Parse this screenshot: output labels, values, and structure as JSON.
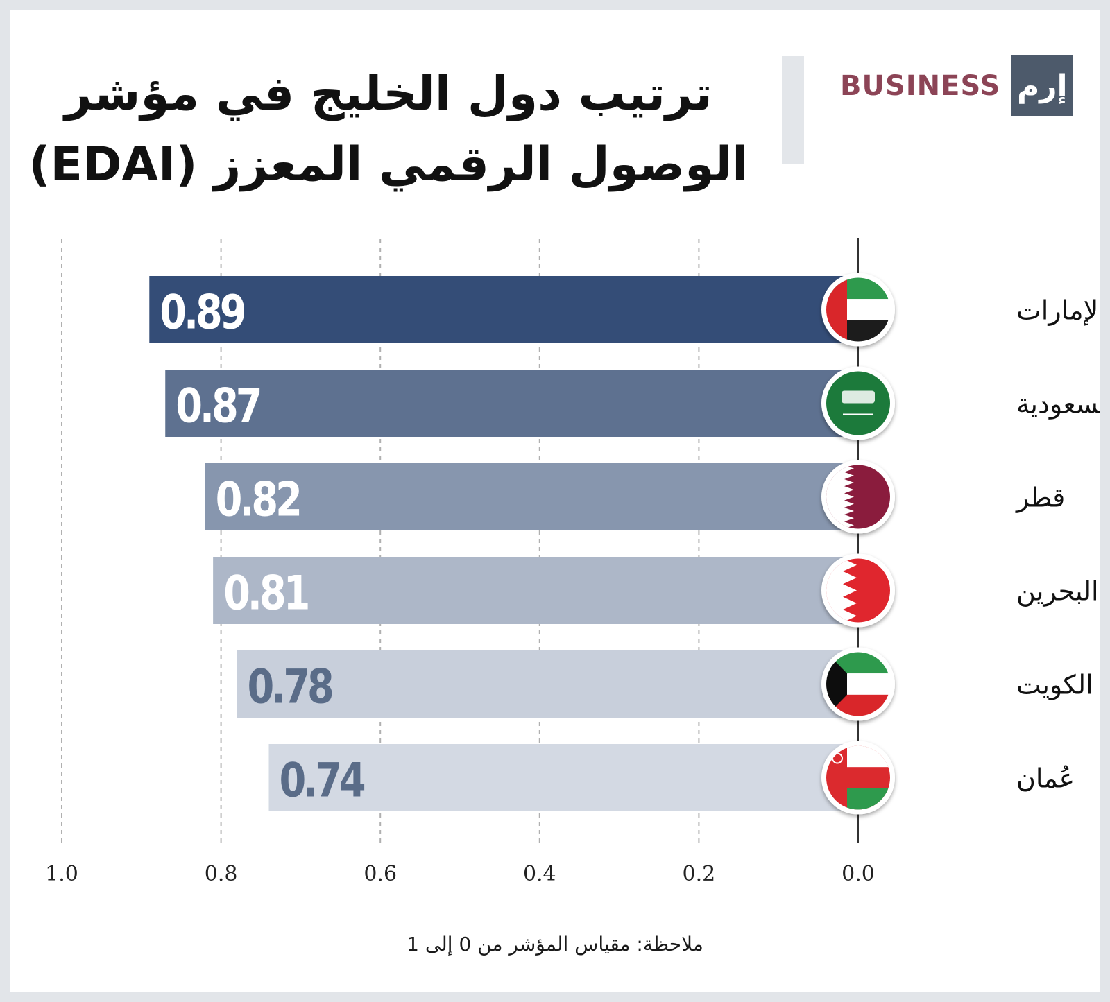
{
  "header": {
    "title_line1": "ترتيب دول الخليج في مؤشر",
    "title_line2": "الوصول الرقمي المعزز (EDAI)",
    "logo_text": "BUSINESS",
    "logo_mark": "إرم"
  },
  "note": "ملاحظة: مقياس المؤشر من 0 إلى 1",
  "colors": {
    "bars": [
      "#344d77",
      "#5e7190",
      "#8796ae",
      "#adb7c8",
      "#c8cfdb",
      "#d3d9e3"
    ],
    "value_light": "#ffffff",
    "value_dark": "#5a6c88",
    "grid": "#b0b0b0",
    "axis": "#333333"
  },
  "chart_data": {
    "type": "bar",
    "orientation": "horizontal",
    "direction": "right-to-left",
    "categories": [
      "الإمارات",
      "السعودية",
      "قطر",
      "البحرين",
      "الكويت",
      "عُمان"
    ],
    "values": [
      0.89,
      0.87,
      0.82,
      0.81,
      0.78,
      0.74
    ],
    "value_labels": [
      "0.89",
      "0.87",
      "0.82",
      "0.81",
      "0.78",
      "0.74"
    ],
    "flags": [
      "uae-flag-icon",
      "saudi-flag-icon",
      "qatar-flag-icon",
      "bahrain-flag-icon",
      "kuwait-flag-icon",
      "oman-flag-icon"
    ],
    "xlim": [
      0,
      1
    ],
    "xticks": [
      "1.0",
      "0.8",
      "0.6",
      "0.4",
      "0.2",
      "0.0"
    ],
    "grid": true,
    "title": "ترتيب دول الخليج في مؤشر الوصول الرقمي المعزز (EDAI)"
  }
}
